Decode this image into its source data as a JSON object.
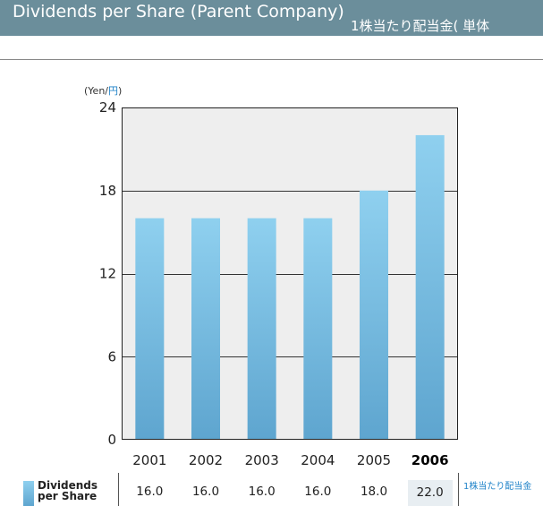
{
  "header": {
    "title": "Dividends per Share (Parent Company)",
    "subtitle": "1株当たり配当金( 単体"
  },
  "unit_label": {
    "en": "(Yen/",
    "jp": "円",
    "close": ")"
  },
  "chart_data": {
    "type": "bar",
    "title": "Dividends per Share (Parent Company)",
    "ylabel": "(Yen/円)",
    "categories": [
      "2001",
      "2002",
      "2003",
      "2004",
      "2005",
      "2006"
    ],
    "values": [
      16.0,
      16.0,
      16.0,
      16.0,
      18.0,
      22.0
    ],
    "yticks": [
      0,
      6,
      12,
      18,
      24
    ],
    "ylim": [
      0,
      24
    ],
    "grid": true,
    "highlight": "2006",
    "colors": {
      "bar_top": "#8fd0ef",
      "bar_bottom": "#5ea5cf",
      "plot_bg": "#eeeeee"
    }
  },
  "table": {
    "row_label": "Dividends per Share",
    "row_label_jp": "1株当たり配当金",
    "values": [
      "16.0",
      "16.0",
      "16.0",
      "16.0",
      "18.0",
      "22.0"
    ]
  }
}
